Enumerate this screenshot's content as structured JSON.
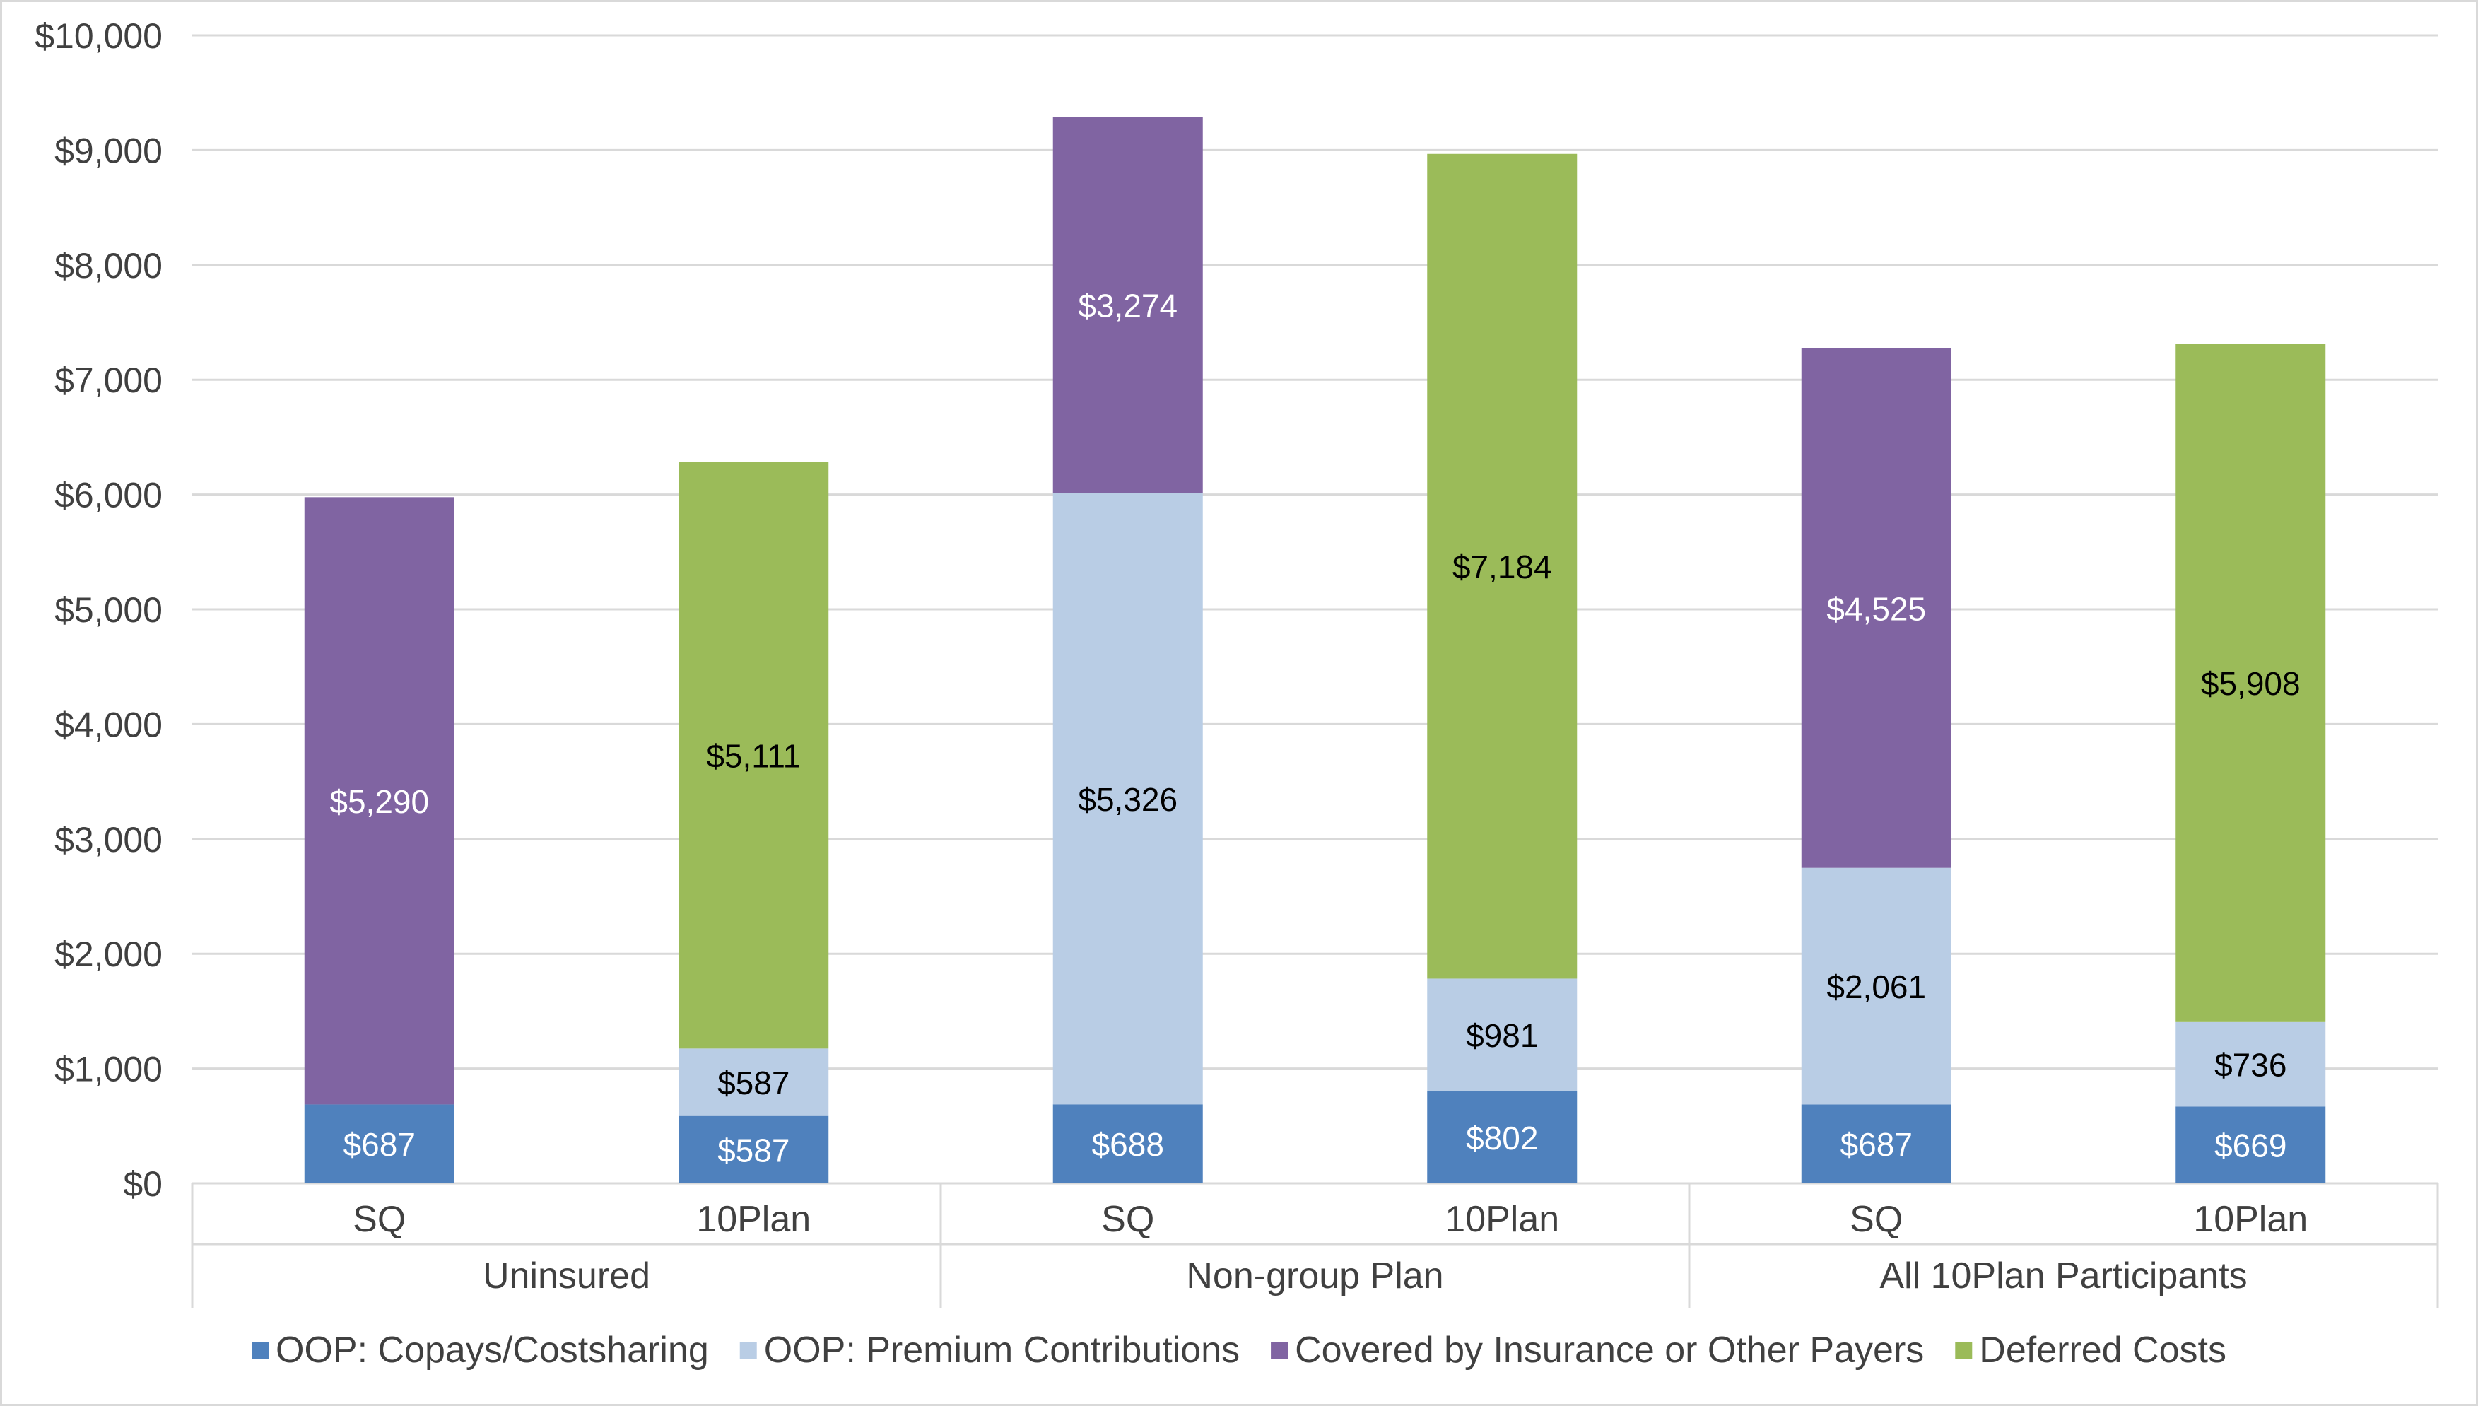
{
  "chart_data": {
    "type": "bar",
    "stacked": true,
    "title": "",
    "xlabel": "",
    "ylabel": "",
    "ylim": [
      0,
      10000
    ],
    "yticks": [
      {
        "value": 0,
        "label": "$0"
      },
      {
        "value": 1000,
        "label": "$1,000"
      },
      {
        "value": 2000,
        "label": "$2,000"
      },
      {
        "value": 3000,
        "label": "$3,000"
      },
      {
        "value": 4000,
        "label": "$4,000"
      },
      {
        "value": 5000,
        "label": "$5,000"
      },
      {
        "value": 6000,
        "label": "$6,000"
      },
      {
        "value": 7000,
        "label": "$7,000"
      },
      {
        "value": 8000,
        "label": "$8,000"
      },
      {
        "value": 9000,
        "label": "$9,000"
      },
      {
        "value": 10000,
        "label": "$10,000"
      }
    ],
    "grid": true,
    "legend_position": "bottom",
    "groups": [
      {
        "label": "Uninsured",
        "categories": [
          "SQ",
          "10Plan"
        ]
      },
      {
        "label": "Non-group Plan",
        "categories": [
          "SQ",
          "10Plan"
        ]
      },
      {
        "label": "All 10Plan Participants",
        "categories": [
          "SQ",
          "10Plan"
        ]
      }
    ],
    "categories": [
      "SQ",
      "10Plan",
      "SQ",
      "10Plan",
      "SQ",
      "10Plan"
    ],
    "series": [
      {
        "name": "OOP: Copays/Costsharing",
        "color": "#4F81BD",
        "label_color": "#ffffff",
        "values": [
          687,
          587,
          688,
          802,
          687,
          669
        ],
        "labels": [
          "$687",
          "$587",
          "$688",
          "$802",
          "$687",
          "$669"
        ]
      },
      {
        "name": "OOP: Premium Contributions",
        "color": "#B9CDE5",
        "label_color": "#000000",
        "values": [
          0,
          587,
          5326,
          981,
          2061,
          736
        ],
        "labels": [
          "",
          "$587",
          "$5,326",
          "$981",
          "$2,061",
          "$736"
        ]
      },
      {
        "name": "Covered by Insurance or Other Payers",
        "color": "#8064A2",
        "label_color": "#ffffff",
        "values": [
          5290,
          0,
          3274,
          0,
          4525,
          0
        ],
        "labels": [
          "$5,290",
          "",
          "$3,274",
          "",
          "$4,525",
          ""
        ]
      },
      {
        "name": "Deferred Costs",
        "color": "#9BBB59",
        "label_color": "#000000",
        "values": [
          0,
          5111,
          0,
          7184,
          0,
          5908
        ],
        "labels": [
          "",
          "$5,111",
          "",
          "$7,184",
          "",
          "$5,908"
        ]
      }
    ],
    "colors": {
      "axis_text": "#404040",
      "gridline": "#D9D9D9",
      "frame": "#D9D9D9"
    }
  }
}
